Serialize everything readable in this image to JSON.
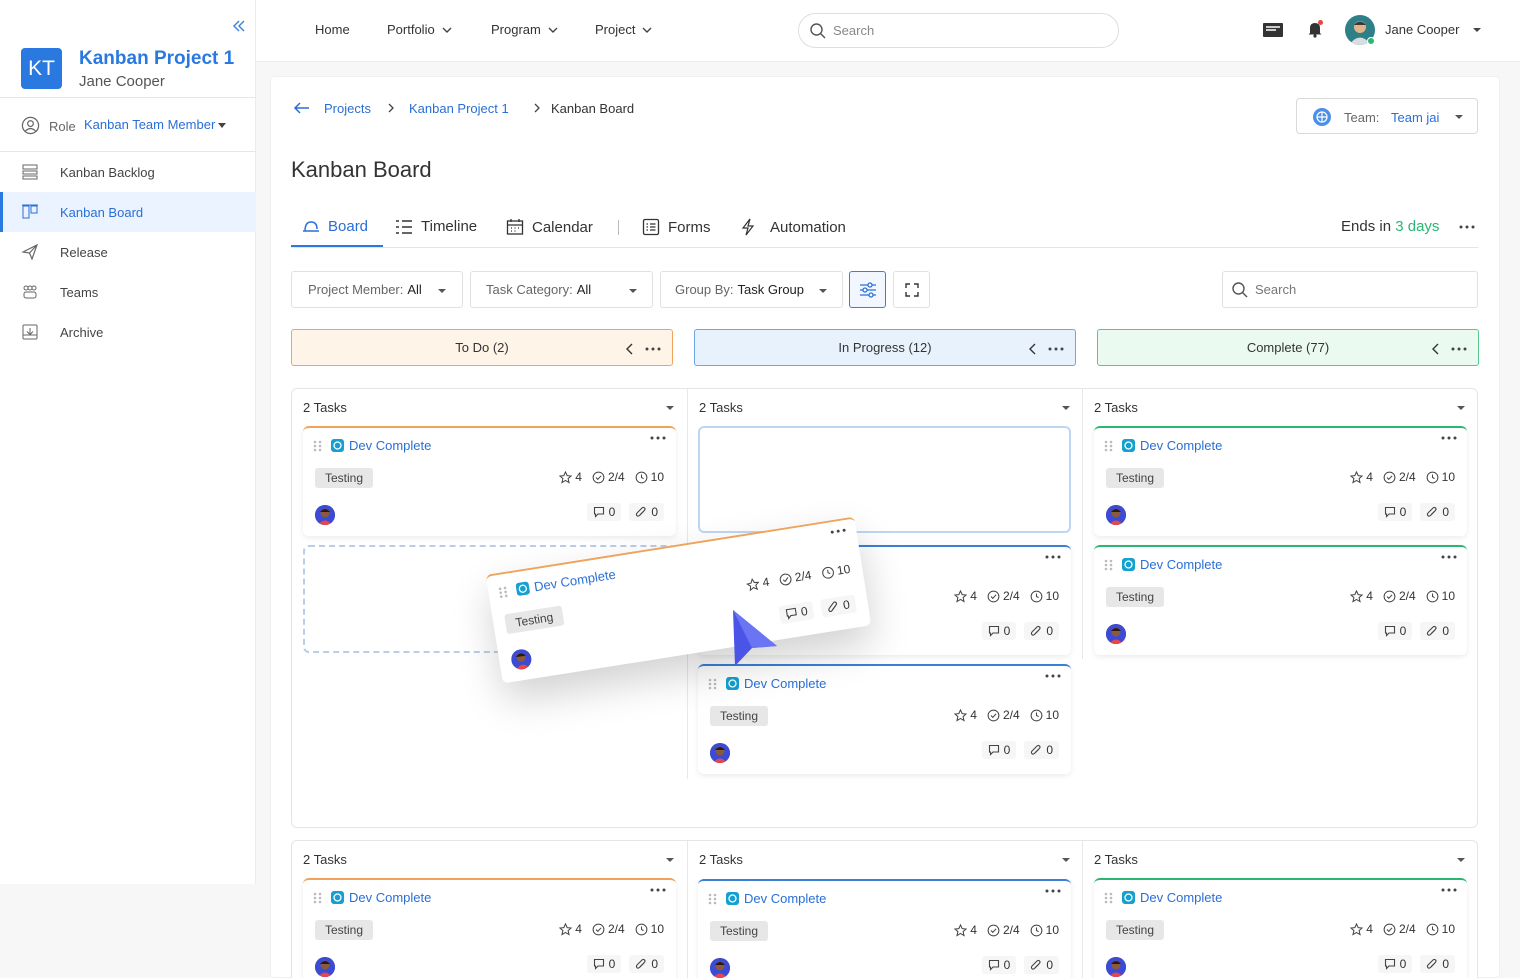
{
  "sidebar": {
    "badge": "KT",
    "project_title": "Kanban Project 1",
    "user_name": "Jane Cooper",
    "role_label": "Role",
    "role_value": "Kanban Team Member",
    "items": [
      {
        "label": "Kanban Backlog",
        "icon": "backlog-icon"
      },
      {
        "label": "Kanban Board",
        "icon": "board-icon",
        "active": true
      },
      {
        "label": "Release",
        "icon": "send-icon"
      },
      {
        "label": "Teams",
        "icon": "teams-icon"
      },
      {
        "label": "Archive",
        "icon": "archive-icon"
      }
    ]
  },
  "topbar": {
    "nav": [
      "Home",
      "Portfolio",
      "Program",
      "Project"
    ],
    "search_placeholder": "Search",
    "user_name": "Jane Cooper"
  },
  "breadcrumb": [
    "Projects",
    "Kanban Project 1",
    "Kanban Board"
  ],
  "team": {
    "label": "Team:",
    "value": "Team jai"
  },
  "page_title": "Kanban Board",
  "tabs": [
    "Board",
    "Timeline",
    "Calendar",
    "Forms",
    "Automation"
  ],
  "ends": {
    "prefix": "Ends in",
    "value": "3 days"
  },
  "filters": {
    "member": {
      "label": "Project Member:",
      "value": "All"
    },
    "category": {
      "label": "Task Category:",
      "value": "All"
    },
    "group": {
      "label": "Group By:",
      "value": "Task Group"
    },
    "search_placeholder": "Search"
  },
  "columns": [
    {
      "title": "To Do (2)",
      "bg": "#fff4e8",
      "border": "#f0a35a"
    },
    {
      "title": "In Progress (12)",
      "bg": "#e8f2fd",
      "border": "#6aa6e8"
    },
    {
      "title": "Complete (77)",
      "bg": "#eafaf0",
      "border": "#58c98a"
    }
  ],
  "group_label": "2 Tasks",
  "card": {
    "name": "Dev Complete",
    "chip": "Testing",
    "stars": "4",
    "checks": "2/4",
    "time": "10",
    "comments": "0",
    "attachments": "0"
  }
}
